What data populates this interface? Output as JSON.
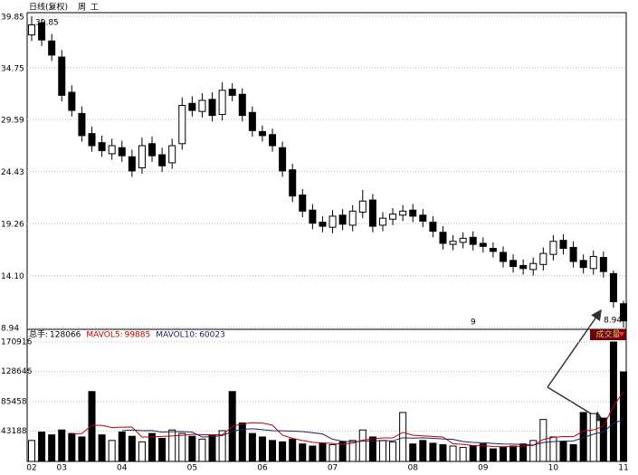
{
  "chart_data": [
    {
      "type": "candlestick",
      "title": "日线(复权)",
      "toolbar": [
        "周",
        "工"
      ],
      "open": [
        38,
        39.2,
        37.4,
        35.8,
        32.3,
        30.2,
        28.2,
        27.3,
        26.2,
        26.8,
        25.9,
        24.8,
        27.2,
        26.1,
        25.3,
        27.2,
        31.2,
        30.4,
        31.6,
        30.1,
        32.6,
        32.1,
        30.3,
        28.4,
        28.1,
        26.8,
        24.6,
        22.1,
        20.6,
        19.4,
        18.9,
        20.1,
        19.1,
        20.4,
        21.6,
        19.1,
        19.7,
        20.1,
        20.6,
        20.1,
        19.4,
        18.4,
        17.2,
        17.4,
        17.9,
        17.3,
        16.8,
        16.4,
        15.6,
        15.1,
        14.7,
        15.2,
        16.2,
        17.6,
        16.9,
        15.6,
        14.8,
        15.9,
        14.3,
        11.3
      ],
      "high": [
        39.85,
        39.6,
        38.1,
        36.5,
        33,
        30.9,
        28.9,
        28,
        27.7,
        27.5,
        26.6,
        27.8,
        27.9,
        26.8,
        27.7,
        31.8,
        31.9,
        32.2,
        32.3,
        33.3,
        33.2,
        32.7,
        30.9,
        29,
        28.7,
        27.4,
        25.2,
        22.7,
        21.2,
        20,
        20.6,
        20.7,
        21.1,
        22.6,
        22.2,
        20.4,
        20.8,
        21.1,
        21.2,
        20.7,
        20,
        19,
        18.1,
        18.4,
        18.5,
        17.9,
        17.4,
        17,
        16.2,
        15.7,
        15.9,
        16.9,
        18.1,
        18.2,
        17.5,
        16.2,
        16.6,
        16.5,
        14.6,
        11.6
      ],
      "low": [
        37.4,
        36.9,
        35.4,
        31.4,
        29.9,
        27.4,
        26.4,
        25.9,
        25.6,
        25.4,
        23.9,
        24.2,
        25.4,
        24.4,
        24.7,
        26.6,
        29.9,
        29.8,
        29.4,
        29.5,
        31.4,
        29.4,
        27.9,
        27.4,
        26.4,
        23.9,
        21.4,
        19.9,
        18.7,
        18.4,
        18.3,
        18.6,
        18.5,
        19.8,
        18.4,
        18.5,
        19.1,
        19.5,
        19.4,
        18.9,
        17.9,
        16.7,
        16.6,
        16.8,
        16.6,
        16.4,
        15.9,
        14.9,
        14.4,
        14.2,
        14.1,
        14.6,
        15.6,
        16.2,
        14.9,
        14.3,
        14.2,
        13.9,
        10.9,
        8.94
      ],
      "close": [
        39,
        37.5,
        36,
        32,
        30.5,
        28,
        27,
        26.5,
        27,
        26,
        24.5,
        27,
        26,
        25,
        27,
        31,
        30.5,
        31.5,
        30,
        32.5,
        32,
        30,
        28.5,
        28,
        27,
        24.5,
        22,
        20.5,
        19.3,
        19,
        20,
        19.2,
        20.5,
        21.5,
        19,
        19.8,
        20.2,
        20.5,
        20,
        19.5,
        18.5,
        17.3,
        17.5,
        17.8,
        17.2,
        17,
        16.5,
        15.5,
        15,
        14.8,
        15.3,
        16.3,
        17.5,
        16.8,
        15.5,
        14.9,
        16,
        14.5,
        11.5,
        9.6
      ],
      "up_color": "#ffffff",
      "down_color": "#000000",
      "ylim": [
        8.94,
        39.85
      ],
      "yticks": [
        39.85,
        34.75,
        29.59,
        24.43,
        19.26,
        {
          "value": 14.1,
          "label": "14.10"
        },
        8.94
      ],
      "grid": true,
      "annotations": [
        "9"
      ]
    },
    {
      "type": "bar",
      "categories": [
        "02",
        null,
        null,
        "03",
        null,
        null,
        null,
        null,
        null,
        "04",
        null,
        null,
        null,
        null,
        null,
        null,
        "05",
        null,
        null,
        null,
        null,
        null,
        null,
        "06",
        null,
        null,
        null,
        null,
        null,
        null,
        "07",
        null,
        null,
        null,
        null,
        null,
        null,
        null,
        "08",
        null,
        null,
        null,
        null,
        null,
        null,
        "09",
        null,
        null,
        null,
        null,
        null,
        null,
        "10",
        null,
        null,
        null,
        null,
        null,
        null,
        "11"
      ],
      "series": [
        {
          "name": "总手:",
          "color": "#000000",
          "values": [
            30000,
            42000,
            38000,
            45000,
            40000,
            35000,
            100000,
            38000,
            30000,
            42000,
            36000,
            28000,
            40000,
            33000,
            45000,
            40000,
            36000,
            32000,
            38000,
            44000,
            100000,
            55000,
            40000,
            35000,
            30000,
            28000,
            32000,
            25000,
            22000,
            26000,
            24000,
            28000,
            30000,
            45000,
            35000,
            30000,
            28000,
            70000,
            25000,
            30000,
            26000,
            24000,
            22000,
            20000,
            22000,
            25000,
            18000,
            20000,
            22000,
            25000,
            30000,
            60000,
            35000,
            28000,
            24000,
            70000,
            68443,
            62000,
            170916,
            128066
          ]
        },
        {
          "name": "MAVOL5:",
          "color": "#c00000",
          "values": [
            null,
            null,
            null,
            null,
            39000,
            40000,
            51600,
            51600,
            48600,
            49000,
            49200,
            34800,
            35200,
            35800,
            36400,
            37200,
            38800,
            38200,
            38200,
            38000,
            50000,
            53800,
            55400,
            54800,
            52000,
            37600,
            33000,
            30000,
            27400,
            26600,
            25800,
            25000,
            26000,
            30600,
            32400,
            33600,
            33600,
            41600,
            37600,
            36600,
            35800,
            35000,
            25400,
            24400,
            22800,
            22600,
            21400,
            21000,
            21400,
            22000,
            23000,
            31400,
            34400,
            35600,
            35400,
            43400,
            45089,
            50489,
            79072,
            99885
          ]
        },
        {
          "name": "MAVOL10:",
          "color": "#202060",
          "values": [
            null,
            null,
            null,
            null,
            null,
            null,
            null,
            null,
            null,
            44000,
            45000,
            44000,
            44200,
            42000,
            42500,
            42800,
            42000,
            35000,
            35500,
            37000,
            43000,
            46000,
            46800,
            45500,
            44000,
            43800,
            43400,
            42700,
            41100,
            39300,
            31700,
            29000,
            28000,
            29000,
            29500,
            29700,
            29400,
            33900,
            33400,
            33800,
            33000,
            32200,
            31500,
            28500,
            27200,
            26700,
            25700,
            25000,
            24700,
            24200,
            23400,
            27000,
            28300,
            29100,
            29300,
            34000,
            39000,
            42300,
            54300,
            60023
          ]
        }
      ],
      "ylim": [
        0,
        170916
      ],
      "yticks": [
        170916,
        128646,
        85458,
        43188
      ],
      "button_label": "成交量"
    }
  ]
}
